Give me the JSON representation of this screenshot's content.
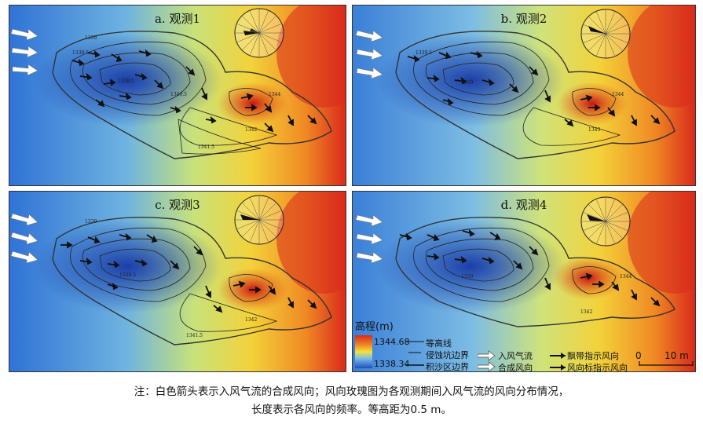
{
  "panels": [
    {
      "title": "a. 观测1"
    },
    {
      "title": "b. 观测2"
    },
    {
      "title": "c. 观测3"
    },
    {
      "title": "d. 观测4"
    }
  ],
  "contour_labels": [
    "1339",
    "1339.5",
    "1338.5",
    "1339",
    "1340.5",
    "1344",
    "1343",
    "1342",
    "1341.5",
    "1342"
  ],
  "legend": {
    "title": "高程(m)",
    "max": "1344.68",
    "min": "1338.34",
    "contour": "等高线",
    "pit": "侵蚀坑边界",
    "deposit": "积沙区边界",
    "inflow": "入风气流",
    "resultant": "合成风向",
    "streamer": "飘带指示风向",
    "flag": "风向标指示风向",
    "scale_zero": "0",
    "scale_len": "10 m"
  },
  "caption": {
    "line1": "注：白色箭头表示入风气流的合成风向；风向玫瑰图为各观测期间入风气流的风向分布情况，",
    "line2": "长度表示各风向的频率。等高距为0.5 m。"
  },
  "colors": {
    "low": "#1f4fbf",
    "mid": "#e8e84a",
    "high": "#d8201a"
  }
}
